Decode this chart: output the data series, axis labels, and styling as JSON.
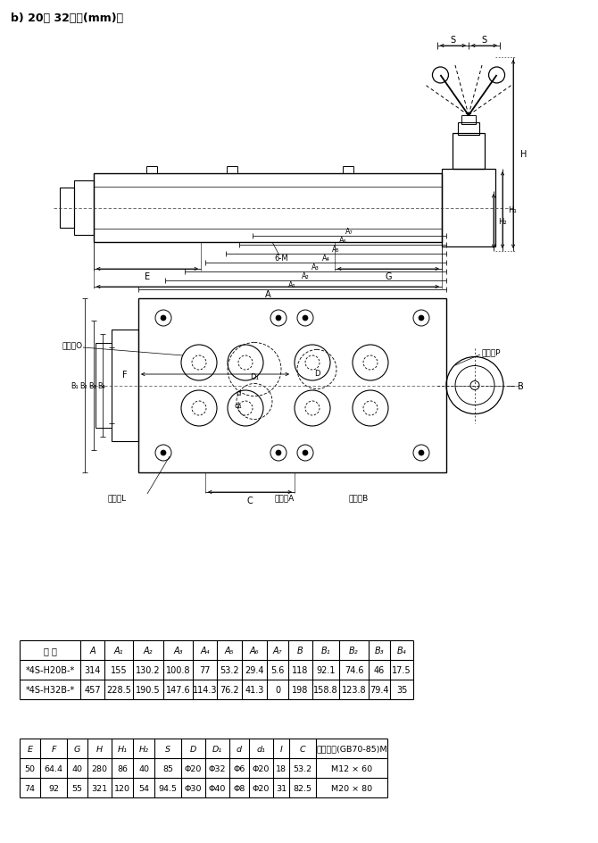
{
  "title": "b) 20、 32通径(mm)：",
  "table1_headers": [
    "型 号",
    "A",
    "A₁",
    "A₂",
    "A₃",
    "A₄",
    "A₅",
    "A₆",
    "A₇",
    "B",
    "B₁",
    "B₂",
    "B₃",
    "B₄"
  ],
  "table1_rows": [
    [
      "*4S-H20B-*",
      "314",
      "155",
      "130.2",
      "100.8",
      "77",
      "53.2",
      "29.4",
      "5.6",
      "118",
      "92.1",
      "74.6",
      "46",
      "17.5"
    ],
    [
      "*4S-H32B-*",
      "457",
      "228.5",
      "190.5",
      "147.6",
      "114.3",
      "76.2",
      "41.3",
      "0",
      "198",
      "158.8",
      "123.8",
      "79.4",
      "35"
    ]
  ],
  "table2_headers": [
    "E",
    "F",
    "G",
    "H",
    "H₁",
    "H₂",
    "S",
    "D",
    "D₁",
    "d",
    "d₁",
    "I",
    "C",
    "安装螺栓(GB70-85)M"
  ],
  "table2_rows": [
    [
      "50",
      "64.4",
      "40",
      "280",
      "86",
      "40",
      "85",
      "Φ20",
      "Φ32",
      "Φ6",
      "Φ20",
      "18",
      "53.2",
      "M12 × 60"
    ],
    [
      "74",
      "92",
      "55",
      "321",
      "120",
      "54",
      "94.5",
      "Φ30",
      "Φ40",
      "Φ8",
      "Φ20",
      "31",
      "82.5",
      "M20 × 80"
    ]
  ]
}
